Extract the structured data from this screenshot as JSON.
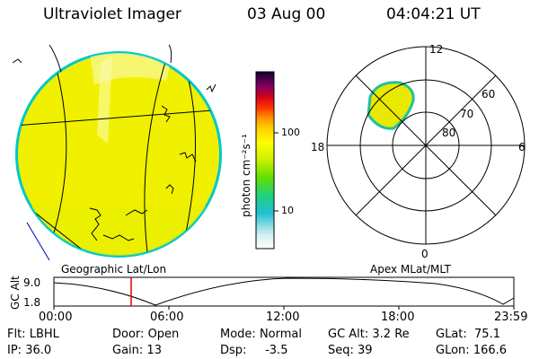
{
  "header": {
    "instrument": "Ultraviolet Imager",
    "date": "03 Aug 00",
    "time": "04:04:21 UT"
  },
  "colorbar": {
    "unit_label": "photon cm⁻²s⁻¹",
    "ticks": [
      "100",
      "10"
    ]
  },
  "polar_plot": {
    "mlt_labels": {
      "top": "12",
      "left": "18",
      "right": "6",
      "bottom": "0"
    },
    "lat_labels": [
      "60",
      "70",
      "80"
    ]
  },
  "altitude_plot": {
    "left_title": "Geographic Lat/Lon",
    "right_title": "Apex MLat/MLT",
    "axis_label": "GC Alt",
    "y_ticks": [
      "9.0",
      "1.8"
    ],
    "x_ticks": [
      "00:00",
      "06:00",
      "12:00",
      "18:00",
      "23:59"
    ],
    "marker_color": "#e00000"
  },
  "status": {
    "row1": [
      {
        "label": "Flt:",
        "value": "LBHL"
      },
      {
        "label": "Door:",
        "value": "Open"
      },
      {
        "label": "Mode:",
        "value": "Normal"
      },
      {
        "label": "GC Alt:",
        "value": "3.2 Re"
      },
      {
        "label": "GLat:",
        "value": "75.1"
      }
    ],
    "row2": [
      {
        "label": "IP:",
        "value": "36.0"
      },
      {
        "label": "Gain:",
        "value": "13"
      },
      {
        "label": "Dsp:",
        "value": "-3.5"
      },
      {
        "label": "Seq:",
        "value": "39"
      },
      {
        "label": "GLon:",
        "value": "166.6"
      }
    ]
  },
  "colors": {
    "disk_fill": "#f0f000",
    "disk_edge": "#00d0d0",
    "oval_fill": "#e8e800"
  }
}
